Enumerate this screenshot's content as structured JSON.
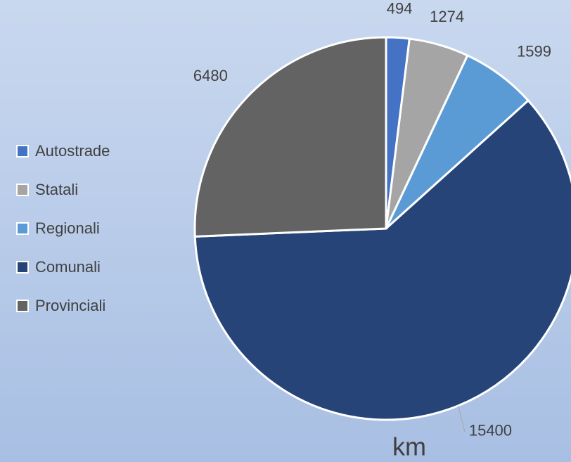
{
  "chart_data": {
    "type": "pie",
    "title": "km",
    "categories": [
      "Autostrade",
      "Statali",
      "Regionali",
      "Comunali",
      "Provinciali"
    ],
    "values": [
      494,
      1274,
      1599,
      15400,
      6480
    ],
    "colors": [
      "#4472c4",
      "#a5a5a5",
      "#5b9bd5",
      "#264478",
      "#636363"
    ],
    "legend": "left"
  }
}
